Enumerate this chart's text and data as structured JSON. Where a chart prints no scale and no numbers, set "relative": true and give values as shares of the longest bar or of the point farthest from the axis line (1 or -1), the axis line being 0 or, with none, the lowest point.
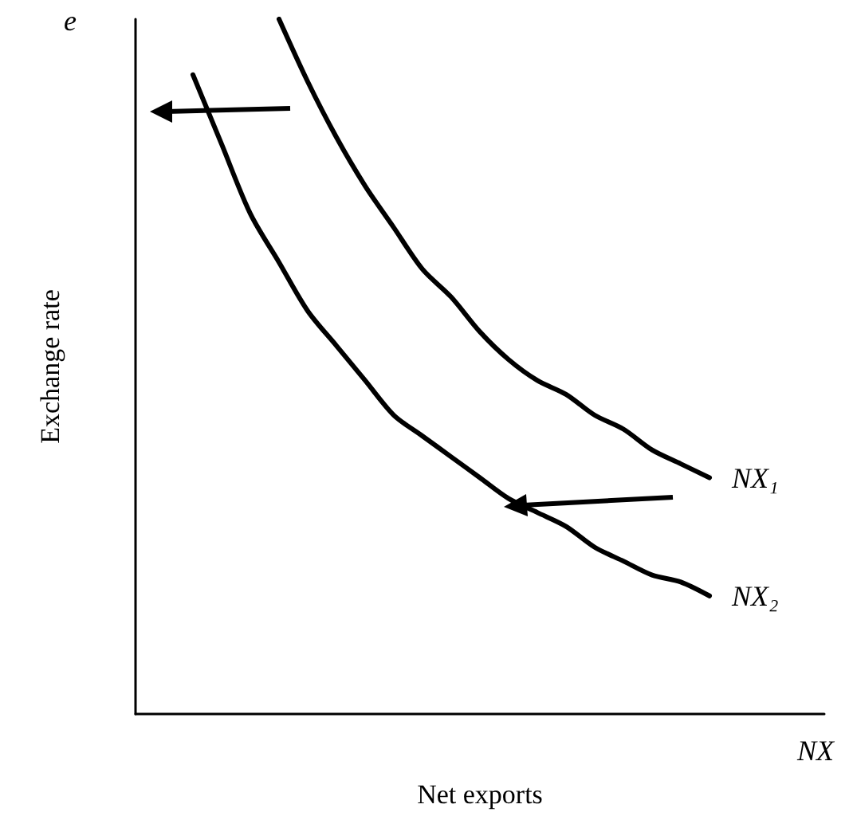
{
  "chart_data": {
    "type": "line",
    "relative": true,
    "xlabel": "Net exports",
    "ylabel": "Exchange rate",
    "annotations": [
      "e",
      "NX"
    ],
    "categories": [
      null,
      null,
      null,
      null,
      null,
      null,
      null,
      null,
      null,
      null,
      null,
      null,
      null,
      null,
      null,
      null,
      null,
      null,
      null,
      null,
      null,
      null,
      null,
      null,
      null
    ],
    "series": [
      {
        "name": "NX₁",
        "color": "#000000",
        "values": [
          null,
          null,
          null,
          null,
          null,
          1.0,
          0.91,
          0.83,
          0.76,
          0.7,
          0.64,
          0.6,
          0.55,
          0.51,
          0.48,
          0.46,
          0.43,
          0.41,
          0.38,
          0.36,
          0.34,
          null,
          null,
          null,
          null
        ]
      },
      {
        "name": "NX₂",
        "color": "#000000",
        "values": [
          null,
          null,
          0.92,
          0.82,
          0.72,
          0.65,
          0.58,
          0.53,
          0.48,
          0.43,
          0.4,
          0.37,
          0.34,
          0.31,
          0.29,
          0.27,
          0.24,
          0.22,
          0.2,
          0.19,
          0.17,
          null,
          null,
          null,
          null
        ]
      }
    ],
    "legend": false,
    "grid": false,
    "line_style": "solid"
  }
}
